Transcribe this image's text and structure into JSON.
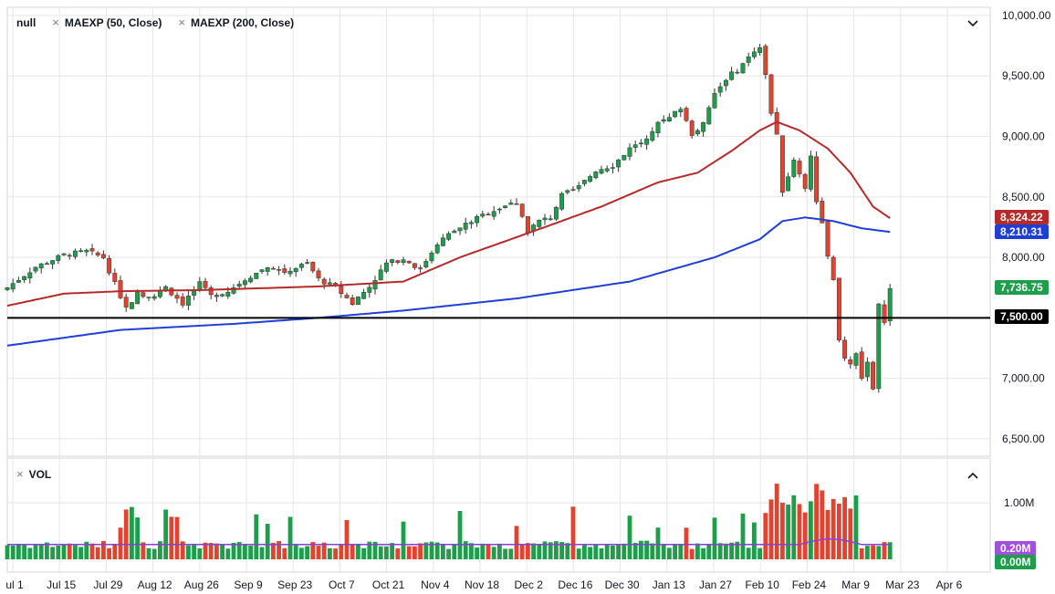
{
  "legend": {
    "symbol": "null",
    "ma1": "MAEXP (50, Close)",
    "ma2": "MAEXP (200, Close)",
    "vol": "VOL",
    "close_glyph": "×"
  },
  "icons": {
    "collapse_main": "chevron-down",
    "collapse_vol": "chevron-up"
  },
  "colors": {
    "up": "#1e9e4a",
    "down": "#e2432e",
    "ma50": "#b52a2a",
    "ma200": "#1f3fd4",
    "hline": "#000000",
    "vol_ma": "#8b3fd6",
    "grid": "#e6e6e6"
  },
  "badges": {
    "ma50": "8,324.22",
    "ma200": "8,210.31",
    "last": "7,736.75",
    "hline": "7,500.00",
    "vol_ma": "0.20M",
    "vol_last": "0.00M"
  },
  "chart_data": {
    "type": "candlestick",
    "y_ticks": [
      "10,000.00",
      "9,500.00",
      "9,000.00",
      "8,500.00",
      "8,000.00",
      "7,500.00",
      "7,000.00",
      "6,500.00"
    ],
    "x_ticks": [
      "ul 1",
      "Jul 15",
      "Jul 29",
      "Aug 12",
      "Aug 26",
      "Sep 9",
      "Sep 23",
      "Oct 7",
      "Oct 21",
      "Nov 4",
      "Nov 18",
      "Dec 2",
      "Dec 16",
      "Dec 30",
      "Jan 13",
      "Jan 27",
      "Feb 10",
      "Feb 24",
      "Mar 9",
      "Mar 23",
      "Apr 6"
    ],
    "vol_ticks": [
      "1.00M"
    ],
    "ylim": [
      6400,
      10000
    ],
    "horizontal_line": 7500,
    "close_anchors": [
      [
        0,
        7750
      ],
      [
        5,
        7920
      ],
      [
        10,
        8020
      ],
      [
        14,
        8050
      ],
      [
        17,
        8000
      ],
      [
        19,
        7780
      ],
      [
        21,
        7580
      ],
      [
        23,
        7700
      ],
      [
        26,
        7680
      ],
      [
        28,
        7750
      ],
      [
        31,
        7620
      ],
      [
        34,
        7780
      ],
      [
        36,
        7680
      ],
      [
        39,
        7720
      ],
      [
        42,
        7820
      ],
      [
        46,
        7920
      ],
      [
        49,
        7880
      ],
      [
        53,
        7950
      ],
      [
        55,
        7820
      ],
      [
        58,
        7750
      ],
      [
        61,
        7620
      ],
      [
        64,
        7760
      ],
      [
        67,
        7950
      ],
      [
        70,
        7990
      ],
      [
        73,
        7900
      ],
      [
        76,
        8120
      ],
      [
        79,
        8220
      ],
      [
        82,
        8300
      ],
      [
        85,
        8370
      ],
      [
        88,
        8430
      ],
      [
        90,
        8450
      ],
      [
        92,
        8220
      ],
      [
        94,
        8300
      ],
      [
        96,
        8330
      ],
      [
        98,
        8510
      ],
      [
        101,
        8580
      ],
      [
        104,
        8720
      ],
      [
        107,
        8760
      ],
      [
        110,
        8900
      ],
      [
        112,
        8950
      ],
      [
        115,
        9100
      ],
      [
        117,
        9150
      ],
      [
        119,
        9240
      ],
      [
        121,
        9020
      ],
      [
        123,
        9100
      ],
      [
        125,
        9350
      ],
      [
        127,
        9480
      ],
      [
        129,
        9550
      ],
      [
        131,
        9650
      ],
      [
        133,
        9720
      ],
      [
        134,
        9500
      ],
      [
        135,
        9200
      ],
      [
        136,
        9000
      ],
      [
        137,
        8550
      ],
      [
        139,
        8800
      ],
      [
        141,
        8580
      ],
      [
        142,
        8850
      ],
      [
        143,
        8450
      ],
      [
        144,
        8300
      ],
      [
        145,
        8000
      ],
      [
        146,
        7800
      ],
      [
        147,
        7300
      ],
      [
        148,
        7180
      ],
      [
        149,
        7100
      ],
      [
        150,
        7200
      ],
      [
        151,
        7000
      ],
      [
        152,
        7150
      ],
      [
        153,
        6900
      ],
      [
        154,
        7600
      ],
      [
        155,
        7480
      ],
      [
        156,
        7740
      ]
    ],
    "ma50_anchors": [
      [
        0,
        7600
      ],
      [
        10,
        7700
      ],
      [
        20,
        7720
      ],
      [
        35,
        7730
      ],
      [
        55,
        7760
      ],
      [
        70,
        7800
      ],
      [
        80,
        8000
      ],
      [
        95,
        8250
      ],
      [
        105,
        8420
      ],
      [
        115,
        8620
      ],
      [
        122,
        8700
      ],
      [
        128,
        8880
      ],
      [
        133,
        9050
      ],
      [
        136,
        9120
      ],
      [
        140,
        9050
      ],
      [
        145,
        8900
      ],
      [
        149,
        8700
      ],
      [
        153,
        8420
      ],
      [
        156,
        8324
      ]
    ],
    "ma200_anchors": [
      [
        0,
        7270
      ],
      [
        20,
        7400
      ],
      [
        40,
        7450
      ],
      [
        55,
        7500
      ],
      [
        70,
        7560
      ],
      [
        90,
        7660
      ],
      [
        110,
        7800
      ],
      [
        125,
        8000
      ],
      [
        133,
        8150
      ],
      [
        137,
        8300
      ],
      [
        141,
        8330
      ],
      [
        146,
        8300
      ],
      [
        151,
        8240
      ],
      [
        156,
        8210
      ]
    ],
    "volume": {
      "base": 0.15,
      "mid": [
        0.3,
        0.3,
        0.3,
        0.3,
        0.3,
        0.32,
        0.32,
        0.32,
        0.32,
        0.35,
        0.38,
        0.65,
        0.75,
        0.6,
        0.35
      ],
      "spike_days": [
        20,
        21,
        22,
        23,
        28,
        29,
        30,
        44,
        46,
        50,
        60,
        70,
        80,
        90,
        100,
        110,
        115,
        120,
        125,
        130,
        132,
        134,
        135,
        136,
        137,
        138,
        139,
        140,
        141,
        142,
        143,
        144,
        145,
        146,
        147,
        148,
        149,
        150
      ],
      "vol_ma": 0.2
    }
  }
}
